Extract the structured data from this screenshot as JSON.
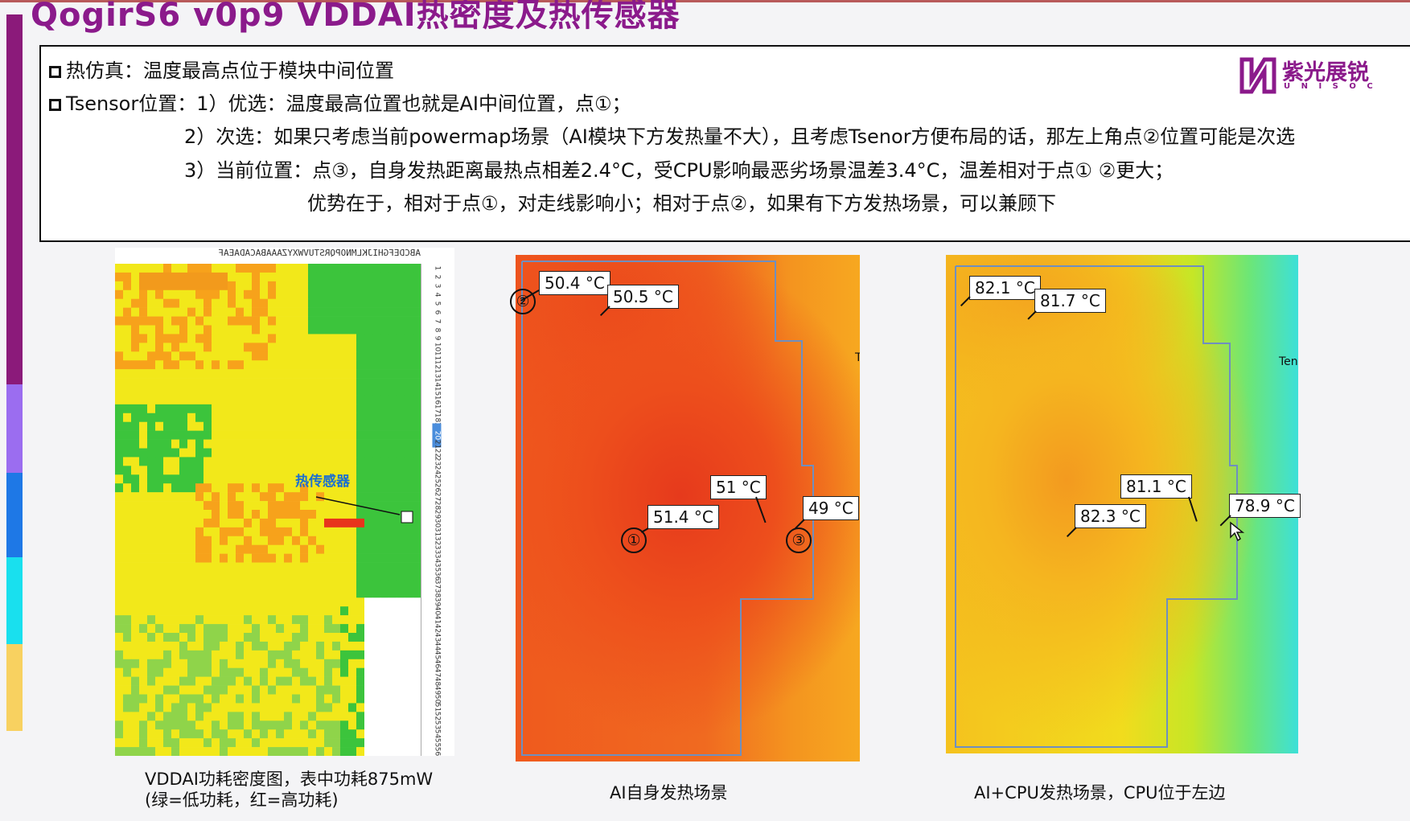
{
  "slide": {
    "title": "QogirS6 v0p9 VDDAI热密度及热传感器"
  },
  "textbox": {
    "line1": "热仿真：温度最高点位于模块中间位置",
    "line2": "Tsensor位置：1）优选：温度最高位置也就是AI中间位置，点①；",
    "line3": "2）次选：如果只考虑当前powermap场景（AI模块下方发热量不大），且考虑Tsenor方便布局的话，那左上角点②位置可能是次选",
    "line4": "3）当前位置：点③，自身发热距离最热点相差2.4°C，受CPU影响最恶劣场景温差3.4°C，温差相对于点① ②更大；",
    "line5": "优势在于，相对于点①，对走线影响小；相对于点②，如果有下方发热场景，可以兼顾下"
  },
  "logo": {
    "name": "紫光展锐",
    "sub": "U N I S O C",
    "color": "#8b1a8b"
  },
  "heatmap_panel": {
    "column_header": "ABCDEFGHIJKLMNOPQRSTUVWXYZAAABACADAEAF",
    "annotation": "热传感器",
    "caption_line1": "VDDAI功耗密度图，表中功耗875mW",
    "caption_line2": "(绿=低功耗，红=高功耗)",
    "row_numbers": [
      "1",
      "2",
      "3",
      "4",
      "5",
      "6",
      "7",
      "8",
      "9",
      "10",
      "11",
      "12",
      "13",
      "14",
      "15",
      "16",
      "17",
      "18",
      "19",
      "20",
      "21",
      "22",
      "23",
      "24",
      "25",
      "26",
      "27",
      "28",
      "29",
      "30",
      "31",
      "32",
      "33",
      "34",
      "35",
      "36",
      "37",
      "38",
      "39",
      "40",
      "41",
      "42",
      "43",
      "44",
      "45",
      "46",
      "47",
      "48",
      "49",
      "50",
      "51",
      "52",
      "53",
      "54",
      "55",
      "56"
    ]
  },
  "sim_ai": {
    "caption": "AI自身发热场景",
    "edge_label": "T",
    "callouts": [
      {
        "text": "50.4 °C"
      },
      {
        "text": "50.5 °C"
      },
      {
        "text": "51 °C"
      },
      {
        "text": "51.4 °C"
      },
      {
        "text": "49 °C"
      }
    ],
    "markers": [
      "②",
      "①",
      "③"
    ]
  },
  "sim_cpu": {
    "caption": "AI+CPU发热场景，CPU位于左边",
    "edge_label": "Ten",
    "callouts": [
      {
        "text": "82.1 °C"
      },
      {
        "text": "81.7 °C"
      },
      {
        "text": "81.1 °C"
      },
      {
        "text": "82.3 °C"
      },
      {
        "text": "78.9 °C"
      }
    ]
  },
  "colors": {
    "accent": "#8b1a8b",
    "hot": "#e8341c",
    "warm": "#f7a21b",
    "cool_green": "#3cc43c",
    "yellow": "#f2e81a",
    "cyan": "#3de0d8"
  }
}
